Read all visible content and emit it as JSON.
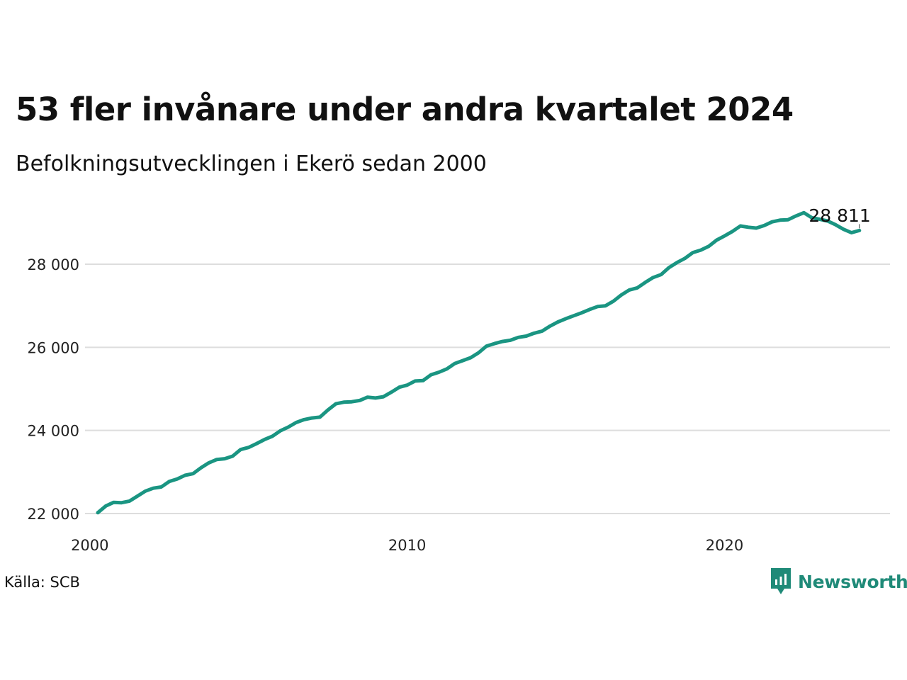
{
  "title": "53 fler invånare under andra kvartalet 2024",
  "subtitle": "Befolkningsutvecklingen i Ekerö sedan 2000",
  "source": "Källa: SCB",
  "brand": "Newsworthy",
  "colors": {
    "line": "#1a9582",
    "grid": "#dddddd",
    "brand": "#1f8a78"
  },
  "chart_data": {
    "type": "line",
    "title": "53 fler invånare under andra kvartalet 2024",
    "subtitle": "Befolkningsutvecklingen i Ekerö sedan 2000",
    "xlabel": "",
    "ylabel": "",
    "xlim": [
      2000,
      2024.75
    ],
    "ylim": [
      22000,
      29500
    ],
    "x_ticks": [
      2000,
      2010,
      2020
    ],
    "x_tick_labels": [
      "2000",
      "2010",
      "2020"
    ],
    "y_ticks": [
      22000,
      24000,
      26000,
      28000
    ],
    "y_tick_labels": [
      "22 000",
      "24 000",
      "26 000",
      "28 000"
    ],
    "grid": "horizontal",
    "end_label": "28 811",
    "series": [
      {
        "x_start": 2000.25,
        "x_step": 0.25,
        "values": [
          22020,
          22180,
          22270,
          22260,
          22300,
          22420,
          22540,
          22610,
          22640,
          22770,
          22830,
          22920,
          22960,
          23100,
          23220,
          23300,
          23320,
          23380,
          23540,
          23590,
          23680,
          23780,
          23860,
          23990,
          24080,
          24190,
          24260,
          24300,
          24320,
          24490,
          24640,
          24680,
          24690,
          24720,
          24800,
          24780,
          24810,
          24920,
          25040,
          25090,
          25190,
          25200,
          25340,
          25400,
          25480,
          25610,
          25680,
          25750,
          25870,
          26030,
          26090,
          26140,
          26170,
          26240,
          26270,
          26340,
          26390,
          26510,
          26610,
          26690,
          26760,
          26830,
          26910,
          26980,
          27000,
          27110,
          27260,
          27380,
          27430,
          27560,
          27680,
          27750,
          27920,
          28040,
          28140,
          28280,
          28340,
          28430,
          28580,
          28680,
          28790,
          28920,
          28890,
          28870,
          28930,
          29020,
          29060,
          29070,
          29160,
          29240,
          29120,
          29080,
          29040,
          28950,
          28840,
          28758,
          28811
        ]
      }
    ]
  }
}
